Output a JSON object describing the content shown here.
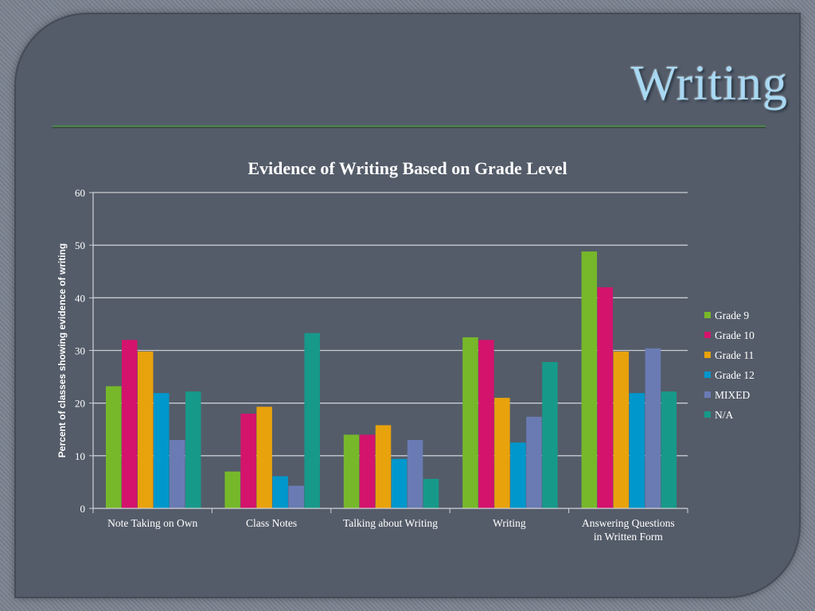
{
  "slide": {
    "title": "Writing"
  },
  "chart_data": {
    "type": "bar",
    "title": "Evidence of Writing Based on Grade Level",
    "xlabel": "",
    "ylabel": "Percent of classes  showing evidence of writing",
    "ylim": [
      0,
      60
    ],
    "yticks": [
      0,
      10,
      20,
      30,
      40,
      50,
      60
    ],
    "grid": true,
    "legend_position": "right",
    "categories": [
      [
        "Note Taking on Own"
      ],
      [
        "Class Notes"
      ],
      [
        "Talking about Writing"
      ],
      [
        "Writing"
      ],
      [
        "Answering Questions",
        "in Written Form"
      ]
    ],
    "series": [
      {
        "name": "Grade 9",
        "color": "#76b82a",
        "values": [
          23.2,
          7.0,
          14.0,
          32.5,
          48.8
        ]
      },
      {
        "name": "Grade 10",
        "color": "#d4136d",
        "values": [
          32.0,
          18.0,
          14.0,
          32.0,
          42.0
        ]
      },
      {
        "name": "Grade 11",
        "color": "#e8a20c",
        "values": [
          29.8,
          19.3,
          15.8,
          21.0,
          29.8
        ]
      },
      {
        "name": "Grade 12",
        "color": "#0097cc",
        "values": [
          21.9,
          6.1,
          9.4,
          12.5,
          21.9
        ]
      },
      {
        "name": "MIXED",
        "color": "#6a7bb4",
        "values": [
          13.0,
          4.3,
          13.0,
          17.4,
          30.4
        ]
      },
      {
        "name": "N/A",
        "color": "#17998a",
        "values": [
          22.2,
          33.3,
          5.6,
          27.8,
          22.2
        ]
      }
    ]
  }
}
